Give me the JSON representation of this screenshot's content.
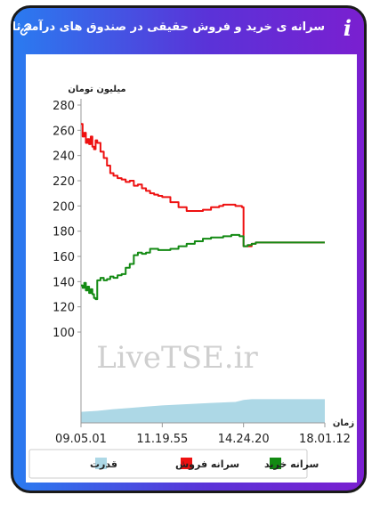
{
  "header": {
    "title": "سرانه ی خرید و فروش حقیقی در صندوق های درآمد ثابت",
    "info_icon": "info-icon",
    "link_icon": "link-icon",
    "background": [
      "#2a7bf0",
      "#7a1fd0"
    ]
  },
  "chart_data": {
    "type": "line",
    "ylabel": "میلیون تومان",
    "xlabel": "زمان",
    "yticks": [
      100,
      120,
      140,
      160,
      180,
      200,
      220,
      240,
      260,
      280
    ],
    "ylim": [
      100,
      280
    ],
    "xticks": [
      "09.05.01",
      "11.19.55",
      "14.24.20",
      "18.01.12"
    ],
    "x": [
      0,
      2,
      4,
      6,
      8,
      10,
      12,
      14,
      16,
      18,
      20,
      24,
      28,
      32,
      36,
      40,
      45,
      50,
      55,
      60,
      65,
      70,
      75,
      80,
      85,
      90,
      95,
      100,
      110,
      120,
      130,
      140,
      150,
      160,
      170,
      175,
      180,
      185,
      190,
      195,
      198,
      200,
      202,
      205,
      210,
      215,
      220,
      230,
      240,
      250,
      260,
      270,
      280,
      290,
      300
    ],
    "series": [
      {
        "name": "سرانه فروش",
        "color": "#ee1111",
        "values": [
          265,
          255,
          258,
          250,
          253,
          249,
          255,
          247,
          245,
          252,
          250,
          243,
          238,
          232,
          226,
          224,
          222,
          221,
          219,
          220,
          216,
          217,
          214,
          212,
          210,
          209,
          208,
          207,
          203,
          199,
          196,
          196,
          197,
          199,
          200,
          201,
          201,
          201,
          200,
          200,
          199,
          168,
          168,
          168,
          170,
          171,
          171,
          171,
          171,
          171,
          171,
          171,
          171,
          171,
          171
        ]
      },
      {
        "name": "سرانه خرید",
        "color": "#138a13",
        "values": [
          137,
          135,
          139,
          133,
          136,
          131,
          134,
          130,
          127,
          126,
          141,
          143,
          141,
          142,
          144,
          143,
          145,
          146,
          151,
          154,
          161,
          163,
          162,
          163,
          166,
          166,
          165,
          165,
          166,
          168,
          170,
          172,
          174,
          175,
          175,
          176,
          176,
          177,
          177,
          176,
          176,
          168,
          168,
          169,
          170,
          171,
          171,
          171,
          171,
          171,
          171,
          171,
          171,
          171,
          171
        ]
      }
    ],
    "power": {
      "name": "قدرت",
      "color": "#add8e6",
      "x": [
        0,
        20,
        40,
        60,
        80,
        100,
        130,
        160,
        190,
        200,
        210,
        250,
        300
      ],
      "values": [
        0.44,
        0.48,
        0.55,
        0.6,
        0.65,
        0.7,
        0.75,
        0.8,
        0.84,
        0.92,
        0.95,
        0.95,
        0.95
      ]
    },
    "legend": [
      "سرانه خرید",
      "سرانه فروش",
      "قدرت"
    ],
    "legend_position": "bottom",
    "watermark": "LiveTSE.ir"
  }
}
